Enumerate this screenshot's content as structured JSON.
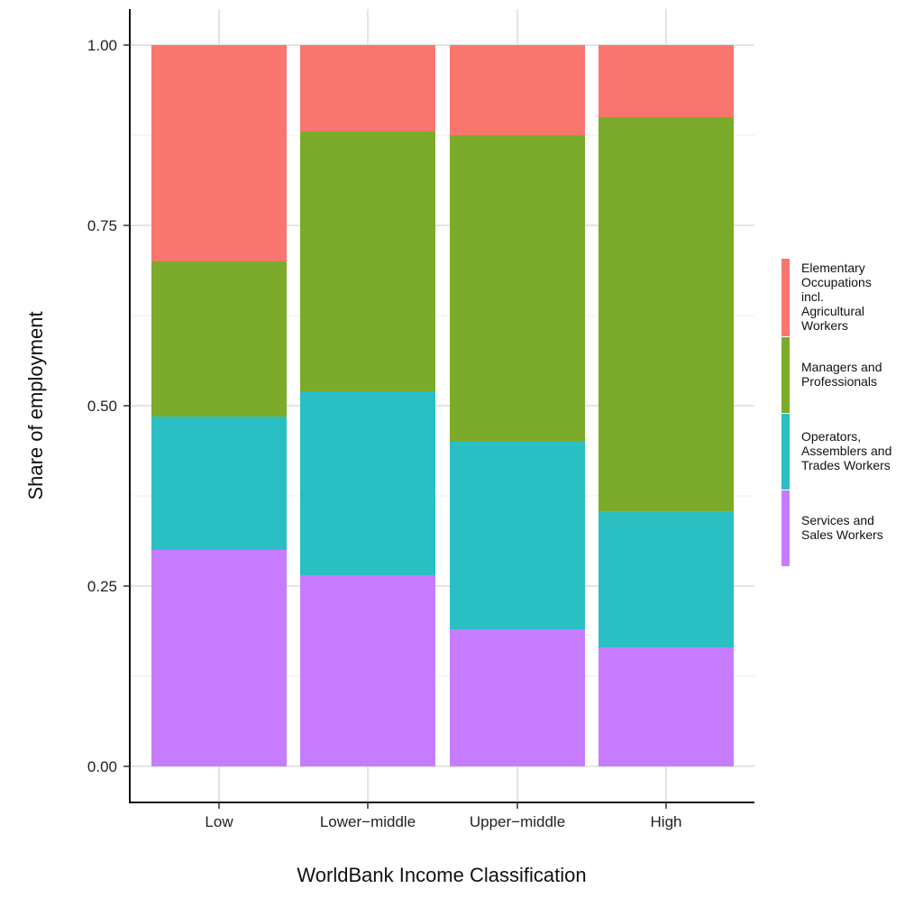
{
  "chart_data": {
    "type": "bar",
    "stacked": true,
    "xlabel": "WorldBank Income Classification",
    "ylabel": "Share of employment",
    "ylim": [
      0,
      1.05
    ],
    "yticks": [
      "0.00",
      "0.25",
      "0.50",
      "0.75",
      "1.00"
    ],
    "grid": true,
    "legend_position": "right",
    "categories": [
      "Low",
      "Lower−middle",
      "Upper−middle",
      "High"
    ],
    "series": [
      {
        "name": "Services and Sales Workers",
        "legend_lines": [
          "Services and",
          "Sales Workers"
        ],
        "color": "#C77CFF",
        "values": [
          0.3,
          0.265,
          0.19,
          0.165
        ]
      },
      {
        "name": "Operators, Assemblers and Trades Workers",
        "legend_lines": [
          "Operators,",
          "Assemblers and",
          "Trades Workers"
        ],
        "color": "#29BFC3",
        "values": [
          0.185,
          0.255,
          0.26,
          0.188
        ]
      },
      {
        "name": "Managers and Professionals",
        "legend_lines": [
          "Managers and",
          "Professionals"
        ],
        "color": "#7CAA2A",
        "values": [
          0.215,
          0.36,
          0.425,
          0.547
        ]
      },
      {
        "name": "Elementary Occupations incl. Agricultural Workers",
        "legend_lines": [
          "Elementary",
          "Occupations",
          "incl.",
          "Agricultural",
          "Workers"
        ],
        "color": "#F8766D",
        "values": [
          0.3,
          0.12,
          0.125,
          0.1
        ]
      }
    ]
  }
}
